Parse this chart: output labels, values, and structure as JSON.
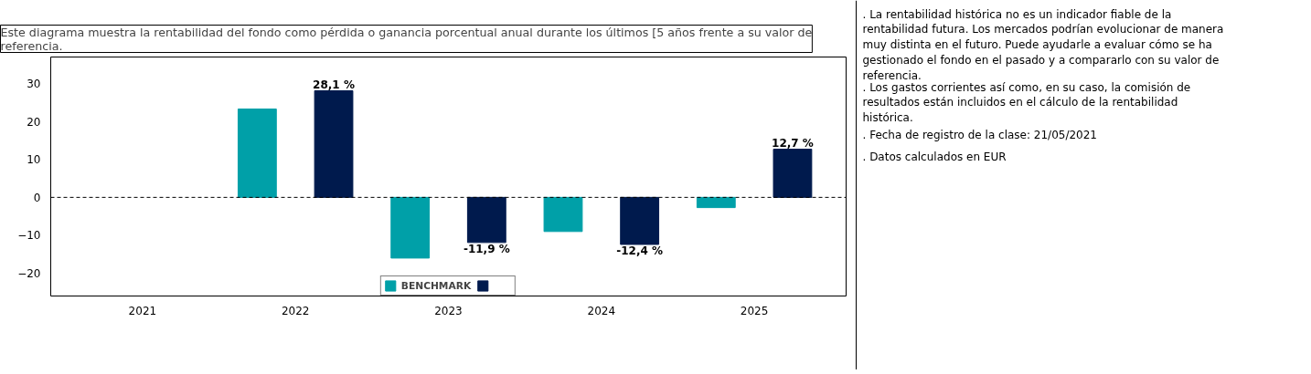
{
  "chart_data": {
    "type": "bar",
    "title": "Este diagrama muestra la rentabilidad del fondo como pérdida o ganancia porcentual anual durante los últimos [5 años frente a su valor de referencia.",
    "categories": [
      "2021",
      "2022",
      "2023",
      "2024",
      "2025"
    ],
    "series": [
      {
        "name": "BENCHMARK",
        "color": "#00a0a8",
        "values": [
          null,
          23.3,
          -16.0,
          -9.0,
          -2.7
        ]
      },
      {
        "color": "#001a4d",
        "values": [
          null,
          28.1,
          -11.9,
          -12.4,
          12.7
        ],
        "value_labels": [
          null,
          "28,1 %",
          "-11,9 %",
          "-12,4 %",
          "12,7 %"
        ]
      }
    ],
    "ylim": [
      -26,
      37
    ],
    "yticks": [
      -20,
      -10,
      0,
      10,
      20,
      30
    ],
    "grid": false,
    "legend": "bottom",
    "ref_lines": [
      {
        "axis": "y",
        "value": 0,
        "color": "#000000",
        "line_style": "dashed"
      }
    ],
    "annotations": [
      ". La rentabilidad histórica no es un indicador fiable de la rentabilidad futura. Los mercados podrían evolucionar de manera muy distinta en el futuro. Puede ayudarle a evaluar cómo se ha gestionado el fondo en el pasado y a compararlo con su valor de referencia.",
      ". Los gastos corrientes así como, en su caso, la comisión de resultados están incluidos en el cálculo de la rentabilidad histórica.",
      ". Fecha de registro de la clase: 21/05/2021",
      ". Datos calculados en EUR"
    ]
  }
}
